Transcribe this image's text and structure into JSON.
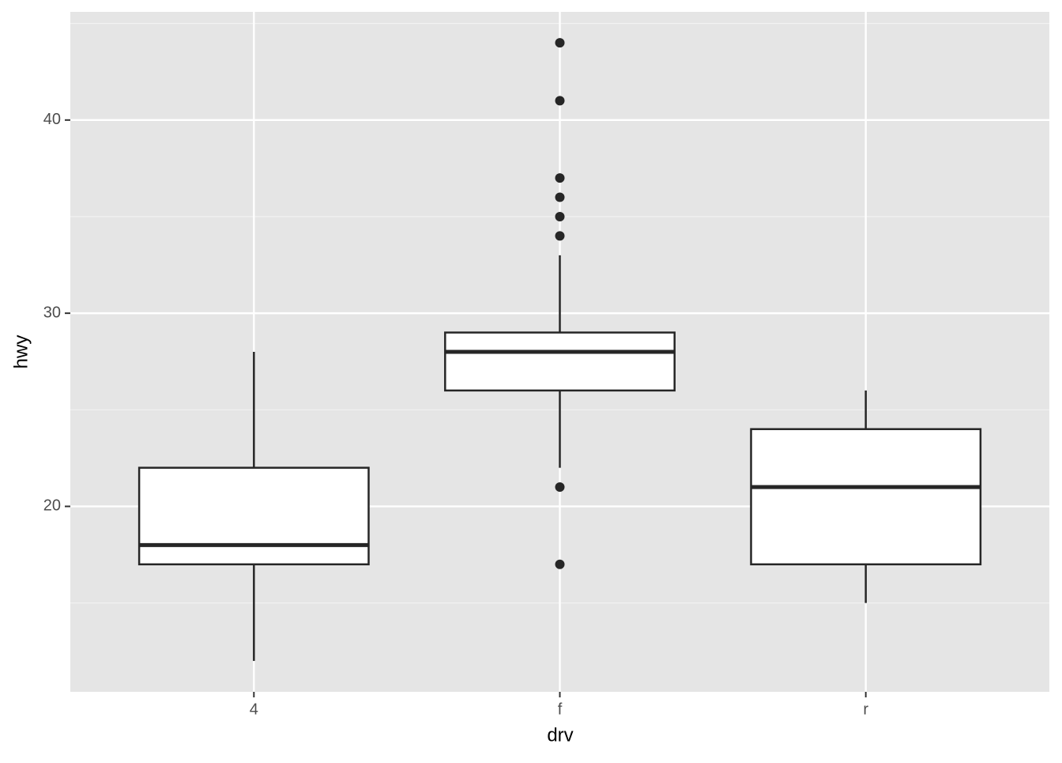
{
  "chart_data": {
    "type": "boxplot",
    "x_label": "drv",
    "y_label": "hwy",
    "categories": [
      "4",
      "f",
      "r"
    ],
    "boxes": [
      {
        "whislo": 12,
        "q1": 17,
        "med": 18,
        "q3": 22,
        "whishi": 28,
        "outliers": []
      },
      {
        "whislo": 22,
        "q1": 26,
        "med": 28,
        "q3": 29,
        "whishi": 33,
        "outliers": [
          44,
          41,
          37,
          36,
          35,
          34,
          21,
          17
        ]
      },
      {
        "whislo": 15,
        "q1": 17,
        "med": 21,
        "q3": 24,
        "whishi": 26,
        "outliers": []
      }
    ],
    "ylim": [
      10.4,
      45.6
    ],
    "yticks": [
      20,
      30,
      40
    ],
    "yminor": [
      15,
      25,
      35,
      45
    ],
    "grid": true,
    "box_fill": "#ffffff",
    "line_color": "#262626",
    "panel_color": "#e5e5e5"
  }
}
